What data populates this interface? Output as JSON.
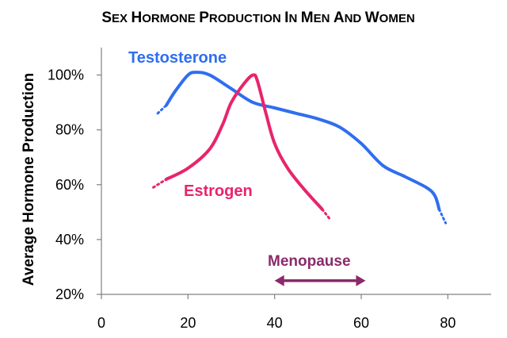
{
  "chart_data": {
    "type": "line",
    "title": "Sex Hormone Production in Men and Women",
    "xlabel": "",
    "ylabel": "Average Hormone Production",
    "xlim": [
      0,
      90
    ],
    "ylim": [
      20,
      110
    ],
    "xticks": [
      0,
      20,
      40,
      60,
      80
    ],
    "yticks": [
      20,
      40,
      60,
      80,
      100
    ],
    "xtick_labels": [
      "0",
      "20",
      "40",
      "60",
      "80"
    ],
    "ytick_labels": [
      "20%",
      "40%",
      "60%",
      "80%",
      "100%"
    ],
    "grid": false,
    "legend": "none",
    "colors": {
      "testosterone": "#2f6ef0",
      "estrogen": "#e8246c",
      "menopause": "#8b2a6a",
      "axis": "#808080"
    },
    "series": [
      {
        "name": "Testosterone",
        "color": "#2f6ef0",
        "dotted_start": [
          [
            13,
            86
          ],
          [
            15,
            89
          ]
        ],
        "values": [
          [
            15,
            89
          ],
          [
            17,
            94
          ],
          [
            20,
            100
          ],
          [
            22,
            101
          ],
          [
            25,
            100
          ],
          [
            30,
            95
          ],
          [
            35,
            90
          ],
          [
            40,
            88
          ],
          [
            45,
            86
          ],
          [
            50,
            84
          ],
          [
            55,
            81
          ],
          [
            60,
            75
          ],
          [
            65,
            67
          ],
          [
            70,
            63
          ],
          [
            75,
            59
          ],
          [
            77,
            56
          ],
          [
            78,
            51
          ]
        ],
        "dotted_end": [
          [
            78,
            51
          ],
          [
            79.5,
            46
          ]
        ]
      },
      {
        "name": "Estrogen",
        "color": "#e8246c",
        "dotted_start": [
          [
            12,
            59
          ],
          [
            15,
            62
          ]
        ],
        "values": [
          [
            15,
            62
          ],
          [
            20,
            66
          ],
          [
            25,
            73
          ],
          [
            28,
            82
          ],
          [
            30,
            90
          ],
          [
            33,
            97
          ],
          [
            35,
            100
          ],
          [
            36,
            98
          ],
          [
            38,
            86
          ],
          [
            40,
            75
          ],
          [
            43,
            66
          ],
          [
            47,
            58
          ],
          [
            51,
            51
          ]
        ],
        "dotted_end": [
          [
            51,
            51
          ],
          [
            53,
            47
          ]
        ]
      }
    ],
    "annotations": [
      {
        "text": "Menopause",
        "type": "double-arrow",
        "x_start": 40,
        "x_end": 61,
        "y": 25,
        "color": "#8b2a6a"
      }
    ]
  }
}
